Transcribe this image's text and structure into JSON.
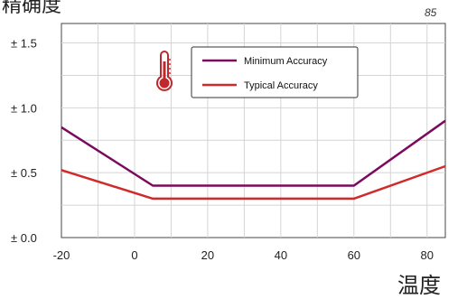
{
  "chart_data": {
    "type": "line",
    "ylabel": "精确度",
    "xlabel": "温度",
    "corner_note": "85",
    "x_ticks": [
      -20,
      0,
      20,
      40,
      60,
      80
    ],
    "y_ticks": [
      0.0,
      0.5,
      1.0,
      1.5
    ],
    "y_tick_labels": [
      "± 0.0",
      "± 0.5",
      "± 1.0",
      "± 1.5"
    ],
    "xlim": [
      -20,
      85
    ],
    "ylim": [
      0,
      1.65
    ],
    "grid": true,
    "legend_position": "top-center",
    "icon": "thermometer-icon",
    "series": [
      {
        "name": "Minimum Accuracy",
        "color": "#7b0a5e",
        "points": [
          [
            -20,
            0.85
          ],
          [
            5,
            0.4
          ],
          [
            60,
            0.4
          ],
          [
            85,
            0.9
          ]
        ]
      },
      {
        "name": "Typical Accuracy",
        "color": "#d12a2a",
        "points": [
          [
            -20,
            0.52
          ],
          [
            5,
            0.3
          ],
          [
            60,
            0.3
          ],
          [
            85,
            0.55
          ]
        ]
      }
    ],
    "colors": {
      "grid": "#d4d4d4",
      "axis": "#444444",
      "icon": "#c0282d"
    }
  }
}
